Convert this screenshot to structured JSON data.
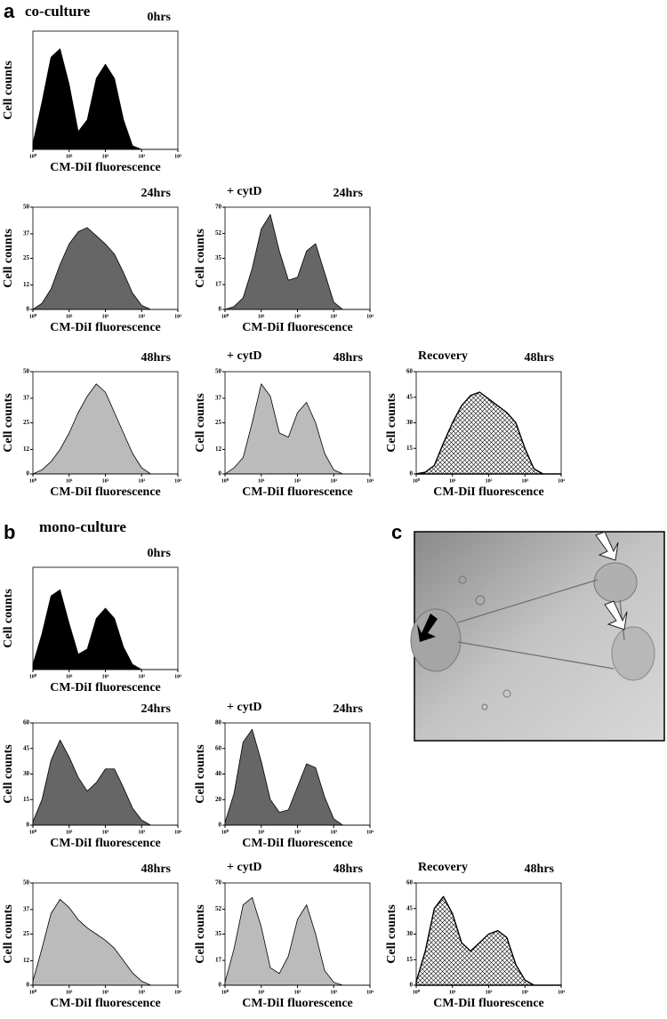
{
  "panels": [
    {
      "label": "a",
      "title": "co-culture"
    },
    {
      "label": "b",
      "title": "mono-culture"
    },
    {
      "label": "c"
    }
  ],
  "chart_data": [
    {
      "type": "area",
      "title": "0hrs",
      "xlabel": "CM-DiI fluorescence",
      "ylabel": "Cell counts",
      "log_x": true,
      "color": "#000000",
      "x": [
        1,
        1.78,
        3.16,
        5.62,
        10,
        17.8,
        31.6,
        56.2,
        100,
        178,
        316,
        562,
        1000,
        1778,
        3162,
        5623,
        10000
      ],
      "values": [
        5,
        40,
        78,
        85,
        55,
        15,
        25,
        60,
        72,
        60,
        25,
        3,
        0,
        0,
        0,
        0,
        0
      ],
      "xlim": [
        1,
        10000
      ],
      "ylim": [
        0,
        100
      ],
      "xticks": [
        {
          "value": 1,
          "label": "10⁰"
        },
        {
          "value": 10,
          "label": "10¹"
        },
        {
          "value": 100,
          "label": "10²"
        },
        {
          "value": 1000,
          "label": "10³"
        },
        {
          "value": 10000,
          "label": "10⁴"
        }
      ],
      "yticks": []
    },
    {
      "type": "area",
      "title": "24hrs",
      "xlabel": "CM-DiI fluorescence",
      "ylabel": "Cell counts",
      "log_x": true,
      "color": "#666666",
      "x": [
        1,
        1.78,
        3.16,
        5.62,
        10,
        17.8,
        31.6,
        56.2,
        100,
        178,
        316,
        562,
        1000,
        1778,
        3162,
        5623,
        10000
      ],
      "values": [
        0,
        3,
        10,
        22,
        32,
        38,
        40,
        36,
        32,
        27,
        18,
        8,
        2,
        0,
        0,
        0,
        0
      ],
      "xlim": [
        1,
        10000
      ],
      "ylim": [
        0,
        50
      ],
      "xticks": [
        {
          "value": 1,
          "label": "10⁰"
        },
        {
          "value": 10,
          "label": "10¹"
        },
        {
          "value": 100,
          "label": "10²"
        },
        {
          "value": 1000,
          "label": "10³"
        },
        {
          "value": 10000,
          "label": "10⁴"
        }
      ],
      "yticks": [
        0,
        12,
        25,
        37,
        50
      ]
    },
    {
      "type": "area",
      "title": "24hrs",
      "annotation": "+ cytD",
      "xlabel": "CM-DiI fluorescence",
      "ylabel": "Cell counts",
      "log_x": true,
      "color": "#666666",
      "x": [
        1,
        1.78,
        3.16,
        5.62,
        10,
        17.8,
        31.6,
        56.2,
        100,
        178,
        316,
        562,
        1000,
        1778,
        3162,
        5623,
        10000
      ],
      "values": [
        0,
        2,
        8,
        28,
        55,
        65,
        40,
        20,
        22,
        40,
        45,
        25,
        5,
        0,
        0,
        0,
        0
      ],
      "xlim": [
        1,
        10000
      ],
      "ylim": [
        0,
        70
      ],
      "xticks": [
        {
          "value": 1,
          "label": "10⁰"
        },
        {
          "value": 10,
          "label": "10¹"
        },
        {
          "value": 100,
          "label": "10²"
        },
        {
          "value": 1000,
          "label": "10³"
        },
        {
          "value": 10000,
          "label": "10⁴"
        }
      ],
      "yticks": [
        0,
        17,
        35,
        52,
        70
      ]
    },
    {
      "type": "area",
      "title": "48hrs",
      "xlabel": "CM-DiI fluorescence",
      "ylabel": "Cell counts",
      "log_x": true,
      "color": "#bbbbbb",
      "x": [
        1,
        1.78,
        3.16,
        5.62,
        10,
        17.8,
        31.6,
        56.2,
        100,
        178,
        316,
        562,
        1000,
        1778,
        3162,
        5623,
        10000
      ],
      "values": [
        0,
        2,
        6,
        12,
        20,
        30,
        38,
        44,
        40,
        30,
        20,
        10,
        3,
        0,
        0,
        0,
        0
      ],
      "xlim": [
        1,
        10000
      ],
      "ylim": [
        0,
        50
      ],
      "xticks": [
        {
          "value": 1,
          "label": "10⁰"
        },
        {
          "value": 10,
          "label": "10¹"
        },
        {
          "value": 100,
          "label": "10²"
        },
        {
          "value": 1000,
          "label": "10³"
        },
        {
          "value": 10000,
          "label": "10⁴"
        }
      ],
      "yticks": [
        0,
        12,
        25,
        37,
        50
      ]
    },
    {
      "type": "area",
      "title": "48hrs",
      "annotation": "+ cytD",
      "xlabel": "CM-DiI fluorescence",
      "ylabel": "Cell counts",
      "log_x": true,
      "color": "#bbbbbb",
      "x": [
        1,
        1.78,
        3.16,
        5.62,
        10,
        17.8,
        31.6,
        56.2,
        100,
        178,
        316,
        562,
        1000,
        1778,
        3162,
        5623,
        10000
      ],
      "values": [
        0,
        3,
        8,
        25,
        44,
        38,
        20,
        18,
        30,
        35,
        25,
        10,
        2,
        0,
        0,
        0,
        0
      ],
      "xlim": [
        1,
        10000
      ],
      "ylim": [
        0,
        50
      ],
      "xticks": [
        {
          "value": 1,
          "label": "10⁰"
        },
        {
          "value": 10,
          "label": "10¹"
        },
        {
          "value": 100,
          "label": "10²"
        },
        {
          "value": 1000,
          "label": "10³"
        },
        {
          "value": 10000,
          "label": "10⁴"
        }
      ],
      "yticks": [
        0,
        12,
        25,
        37,
        50
      ]
    },
    {
      "type": "area",
      "title": "48hrs",
      "annotation": "Recovery",
      "xlabel": "CM-DiI fluorescence",
      "ylabel": "Cell counts",
      "log_x": true,
      "color": "#000000",
      "hatch": true,
      "x": [
        1,
        1.78,
        3.16,
        5.62,
        10,
        17.8,
        31.6,
        56.2,
        100,
        178,
        316,
        562,
        1000,
        1778,
        3162,
        5623,
        10000
      ],
      "values": [
        0,
        1,
        5,
        18,
        30,
        40,
        46,
        48,
        44,
        40,
        36,
        30,
        15,
        3,
        0,
        0,
        0
      ],
      "xlim": [
        1,
        10000
      ],
      "ylim": [
        0,
        60
      ],
      "xticks": [
        {
          "value": 1,
          "label": "10⁰"
        },
        {
          "value": 10,
          "label": "10¹"
        },
        {
          "value": 100,
          "label": "10²"
        },
        {
          "value": 1000,
          "label": "10³"
        },
        {
          "value": 10000,
          "label": "10⁴"
        }
      ],
      "yticks": [
        0,
        15,
        30,
        45,
        60
      ]
    },
    {
      "type": "area",
      "title": "0hrs",
      "xlabel": "CM-DiI fluorescence",
      "ylabel": "Cell counts",
      "log_x": true,
      "color": "#000000",
      "x": [
        1,
        1.78,
        3.16,
        5.62,
        10,
        17.8,
        31.6,
        56.2,
        100,
        178,
        316,
        562,
        1000,
        1778,
        3162,
        5623,
        10000
      ],
      "values": [
        5,
        35,
        72,
        78,
        45,
        15,
        20,
        50,
        60,
        50,
        22,
        5,
        0,
        0,
        0,
        0,
        0
      ],
      "xlim": [
        1,
        10000
      ],
      "ylim": [
        0,
        100
      ],
      "xticks": [
        {
          "value": 1,
          "label": "10⁰"
        },
        {
          "value": 10,
          "label": "10¹"
        },
        {
          "value": 100,
          "label": "10²"
        },
        {
          "value": 1000,
          "label": "10³"
        },
        {
          "value": 10000,
          "label": "10⁴"
        }
      ],
      "yticks": []
    },
    {
      "type": "area",
      "title": "24hrs",
      "xlabel": "CM-DiI fluorescence",
      "ylabel": "Cell counts",
      "log_x": true,
      "color": "#666666",
      "x": [
        1,
        1.78,
        3.16,
        5.62,
        10,
        17.8,
        31.6,
        56.2,
        100,
        178,
        316,
        562,
        1000,
        1778,
        3162,
        5623,
        10000
      ],
      "values": [
        2,
        15,
        38,
        50,
        40,
        28,
        20,
        25,
        33,
        33,
        22,
        10,
        3,
        0,
        0,
        0,
        0
      ],
      "xlim": [
        1,
        10000
      ],
      "ylim": [
        0,
        60
      ],
      "xticks": [
        {
          "value": 1,
          "label": "10⁰"
        },
        {
          "value": 10,
          "label": "10¹"
        },
        {
          "value": 100,
          "label": "10²"
        },
        {
          "value": 1000,
          "label": "10³"
        },
        {
          "value": 10000,
          "label": "10⁴"
        }
      ],
      "yticks": [
        0,
        15,
        30,
        45,
        60
      ]
    },
    {
      "type": "area",
      "title": "24hrs",
      "annotation": "+ cytD",
      "xlabel": "CM-DiI fluorescence",
      "ylabel": "Cell counts",
      "log_x": true,
      "color": "#666666",
      "x": [
        1,
        1.78,
        3.16,
        5.62,
        10,
        17.8,
        31.6,
        56.2,
        100,
        178,
        316,
        562,
        1000,
        1778,
        3162,
        5623,
        10000
      ],
      "values": [
        2,
        25,
        65,
        75,
        50,
        20,
        10,
        12,
        30,
        48,
        45,
        22,
        5,
        0,
        0,
        0,
        0
      ],
      "xlim": [
        1,
        10000
      ],
      "ylim": [
        0,
        80
      ],
      "xticks": [
        {
          "value": 1,
          "label": "10⁰"
        },
        {
          "value": 10,
          "label": "10¹"
        },
        {
          "value": 100,
          "label": "10²"
        },
        {
          "value": 1000,
          "label": "10³"
        },
        {
          "value": 10000,
          "label": "10⁴"
        }
      ],
      "yticks": [
        0,
        20,
        40,
        60,
        80
      ]
    },
    {
      "type": "area",
      "title": "48hrs",
      "xlabel": "CM-DiI fluorescence",
      "ylabel": "Cell counts",
      "log_x": true,
      "color": "#bbbbbb",
      "x": [
        1,
        1.78,
        3.16,
        5.62,
        10,
        17.8,
        31.6,
        56.2,
        100,
        178,
        316,
        562,
        1000,
        1778,
        3162,
        5623,
        10000
      ],
      "values": [
        2,
        18,
        35,
        42,
        38,
        32,
        28,
        25,
        22,
        18,
        12,
        6,
        2,
        0,
        0,
        0,
        0
      ],
      "xlim": [
        1,
        10000
      ],
      "ylim": [
        0,
        50
      ],
      "xticks": [
        {
          "value": 1,
          "label": "10⁰"
        },
        {
          "value": 10,
          "label": "10¹"
        },
        {
          "value": 100,
          "label": "10²"
        },
        {
          "value": 1000,
          "label": "10³"
        },
        {
          "value": 10000,
          "label": "10⁴"
        }
      ],
      "yticks": [
        0,
        12,
        25,
        37,
        50
      ]
    },
    {
      "type": "area",
      "title": "48hrs",
      "annotation": "+ cytD",
      "xlabel": "CM-DiI fluorescence",
      "ylabel": "Cell counts",
      "log_x": true,
      "color": "#bbbbbb",
      "x": [
        1,
        1.78,
        3.16,
        5.62,
        10,
        17.8,
        31.6,
        56.2,
        100,
        178,
        316,
        562,
        1000,
        1778,
        3162,
        5623,
        10000
      ],
      "values": [
        2,
        25,
        55,
        60,
        40,
        12,
        8,
        20,
        45,
        55,
        35,
        10,
        2,
        0,
        0,
        0,
        0
      ],
      "xlim": [
        1,
        10000
      ],
      "ylim": [
        0,
        70
      ],
      "xticks": [
        {
          "value": 1,
          "label": "10⁰"
        },
        {
          "value": 10,
          "label": "10¹"
        },
        {
          "value": 100,
          "label": "10²"
        },
        {
          "value": 1000,
          "label": "10³"
        },
        {
          "value": 10000,
          "label": "10⁴"
        }
      ],
      "yticks": [
        0,
        17,
        35,
        52,
        70
      ]
    },
    {
      "type": "area",
      "title": "48hrs",
      "annotation": "Recovery",
      "xlabel": "CM-DiI fluorescence",
      "ylabel": "Cell counts",
      "log_x": true,
      "color": "#000000",
      "hatch": true,
      "x": [
        1,
        1.78,
        3.16,
        5.62,
        10,
        17.8,
        31.6,
        56.2,
        100,
        178,
        316,
        562,
        1000,
        1778,
        3162,
        5623,
        10000
      ],
      "values": [
        2,
        20,
        45,
        52,
        42,
        25,
        20,
        25,
        30,
        32,
        28,
        12,
        3,
        0,
        0,
        0,
        0
      ],
      "xlim": [
        1,
        10000
      ],
      "ylim": [
        0,
        60
      ],
      "xticks": [
        {
          "value": 1,
          "label": "10⁰"
        },
        {
          "value": 10,
          "label": "10¹"
        },
        {
          "value": 100,
          "label": "10²"
        },
        {
          "value": 1000,
          "label": "10³"
        },
        {
          "value": 10000,
          "label": "10⁴"
        }
      ],
      "yticks": [
        0,
        15,
        30,
        45,
        60
      ]
    }
  ]
}
